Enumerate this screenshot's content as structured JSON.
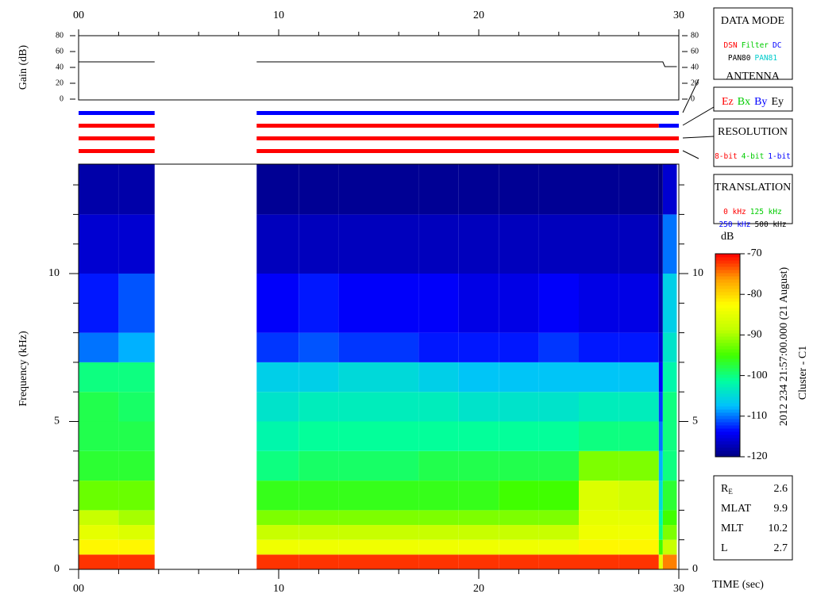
{
  "chart_data": [
    {
      "type": "line",
      "ylabel": "Gain (dB)",
      "x": [
        0,
        3.8,
        6,
        8.9,
        29.2,
        29.3,
        29.9
      ],
      "series": [
        {
          "color": "#000000",
          "values": [
            47,
            47,
            null,
            47,
            47,
            41,
            41
          ]
        }
      ],
      "xlim": [
        0,
        30
      ],
      "xticks": [
        {
          "value": 0,
          "label": "00"
        },
        10,
        20,
        30
      ],
      "xminorticks": [
        2,
        4,
        6,
        8,
        12,
        14,
        16,
        18,
        22,
        24,
        26,
        28
      ],
      "ylim": [
        0,
        80
      ],
      "yticks": [
        0,
        20,
        40,
        60,
        80
      ]
    },
    {
      "type": "status",
      "xlim": [
        0,
        30
      ],
      "rows": [
        {
          "segments": [
            {
              "start": 0,
              "end": 3.8,
              "color": "#0000ff"
            },
            {
              "start": 8.9,
              "end": 30,
              "color": "#0000ff"
            }
          ]
        },
        {
          "segments": [
            {
              "start": 0,
              "end": 3.8,
              "color": "#ff0000"
            },
            {
              "start": 8.9,
              "end": 29,
              "color": "#ff0000"
            },
            {
              "start": 29,
              "end": 30,
              "color": "#0000ff"
            }
          ]
        },
        {
          "segments": [
            {
              "start": 0,
              "end": 3.8,
              "color": "#ff0000"
            },
            {
              "start": 8.9,
              "end": 30,
              "color": "#ff0000"
            }
          ]
        },
        {
          "segments": [
            {
              "start": 0,
              "end": 3.8,
              "color": "#ff0000"
            },
            {
              "start": 8.9,
              "end": 30,
              "color": "#ff0000"
            }
          ]
        }
      ]
    },
    {
      "type": "heatmap",
      "xlabel": "TIME (sec)",
      "ylabel": "Frequency (kHz)",
      "x_edges": [
        0,
        2,
        3.8,
        8.9,
        11,
        13,
        15,
        17,
        19,
        21,
        23,
        25,
        27,
        29,
        29.2,
        29.9
      ],
      "y_edges": [
        0,
        0.5,
        1,
        1.5,
        2,
        3,
        4,
        5,
        6,
        7,
        8,
        10,
        12,
        13.7
      ],
      "values": [
        [
          -72,
          -72,
          null,
          -72,
          -72,
          -72,
          -72,
          -72,
          -72,
          -72,
          -72,
          -72,
          -72,
          -85,
          -75
        ],
        [
          -82,
          -82,
          null,
          -84,
          -84,
          -84,
          -84,
          -84,
          -84,
          -84,
          -84,
          -82,
          -82,
          -95,
          -88
        ],
        [
          -85,
          -86,
          null,
          -88,
          -88,
          -88,
          -88,
          -88,
          -88,
          -88,
          -88,
          -84,
          -84,
          -100,
          -92
        ],
        [
          -88,
          -90,
          null,
          -92,
          -92,
          -92,
          -92,
          -92,
          -92,
          -92,
          -92,
          -85,
          -85,
          -102,
          -95
        ],
        [
          -93,
          -93,
          null,
          -96,
          -96,
          -96,
          -96,
          -96,
          -96,
          -95,
          -95,
          -86,
          -87,
          -105,
          -97
        ],
        [
          -97,
          -97,
          null,
          -100,
          -99,
          -99,
          -99,
          -98,
          -98,
          -98,
          -98,
          -92,
          -92,
          -108,
          -100
        ],
        [
          -98,
          -98,
          null,
          -102,
          -101,
          -101,
          -101,
          -101,
          -101,
          -101,
          -101,
          -100,
          -100,
          -110,
          -100
        ],
        [
          -98,
          -99,
          null,
          -104,
          -103,
          -103,
          -103,
          -103,
          -104,
          -104,
          -104,
          -103,
          -103,
          -112,
          -100
        ],
        [
          -100,
          -100,
          null,
          -106,
          -106,
          -105,
          -105,
          -106,
          -107,
          -107,
          -107,
          -107,
          -107,
          -114,
          -102
        ],
        [
          -110,
          -108,
          null,
          -112,
          -111,
          -112,
          -112,
          -113,
          -113,
          -113,
          -112,
          -113,
          -113,
          -116,
          -104
        ],
        [
          -113,
          -111,
          null,
          -114,
          -113,
          -114,
          -114,
          -114,
          -115,
          -115,
          -114,
          -115,
          -115,
          -118,
          -106
        ],
        [
          -116,
          -116,
          null,
          -117,
          -117,
          -117,
          -117,
          -117,
          -117,
          -117,
          -117,
          -117,
          -117,
          -119,
          -110
        ],
        [
          -118,
          -118,
          null,
          -119,
          -119,
          -119,
          -119,
          -119,
          -119,
          -119,
          -119,
          -119,
          -119,
          -120,
          -116
        ]
      ],
      "xlim": [
        0,
        30
      ],
      "xticks": [
        {
          "value": 0,
          "label": "00"
        },
        10,
        20,
        30
      ],
      "xminorticks": [
        2,
        4,
        6,
        8,
        12,
        14,
        16,
        18,
        22,
        24,
        26,
        28
      ],
      "ylim": [
        0,
        13.7
      ],
      "yticks": [
        0,
        5,
        10
      ],
      "yminorticks": [
        1,
        2,
        3,
        4,
        6,
        7,
        8,
        9,
        11,
        12,
        13
      ],
      "colorbar": {
        "label": "dB",
        "clim": [
          -120,
          -70
        ],
        "cticks": [
          -70,
          -80,
          -90,
          -100,
          -110,
          -120
        ],
        "colormap": [
          "#000080",
          "#0000ff",
          "#00c0ff",
          "#00ffa0",
          "#40ff00",
          "#c0ff00",
          "#ffff00",
          "#ffa000",
          "#ff0000"
        ]
      }
    }
  ],
  "boxes": [
    {
      "title": "DATA MODE",
      "lines": [
        [
          {
            "text": "DSN",
            "color": "#ff0000"
          },
          {
            "text": "Filter",
            "color": "#00cc00"
          },
          {
            "text": "DC",
            "color": "#0000ff"
          }
        ],
        [
          {
            "text": "PAN80",
            "color": "#000000"
          },
          {
            "text": "PAN81",
            "color": "#00cccc"
          }
        ]
      ]
    },
    {
      "title": "ANTENNA",
      "lines": [
        [
          {
            "text": "Ez",
            "color": "#ff0000"
          },
          {
            "text": "Bx",
            "color": "#00cc00"
          },
          {
            "text": "By",
            "color": "#0000ff"
          },
          {
            "text": "Ey",
            "color": "#000000"
          }
        ]
      ]
    },
    {
      "title": "RESOLUTION",
      "lines": [
        [
          {
            "text": "8-bit",
            "color": "#ff0000"
          },
          {
            "text": "4-bit",
            "color": "#00cc00"
          },
          {
            "text": "1-bit",
            "color": "#0000ff"
          }
        ]
      ]
    },
    {
      "title": "TRANSLATION",
      "lines": [
        [
          {
            "text": "0 kHz",
            "color": "#ff0000"
          },
          {
            "text": "125 kHz",
            "color": "#00cc00"
          }
        ],
        [
          {
            "text": "250 kHz",
            "color": "#0000ff"
          },
          {
            "text": "500 kHz",
            "color": "#000000"
          }
        ]
      ]
    }
  ],
  "timestamp": "2012 234 21:57:00.000 (21 August)",
  "spacecraft": "Cluster - C1",
  "info": [
    {
      "label": "R",
      "sub": "E",
      "value": 2.6
    },
    {
      "label": "MLAT",
      "value": 9.9
    },
    {
      "label": "MLT",
      "value": 10.2
    },
    {
      "label": "L",
      "value": 2.7
    }
  ]
}
